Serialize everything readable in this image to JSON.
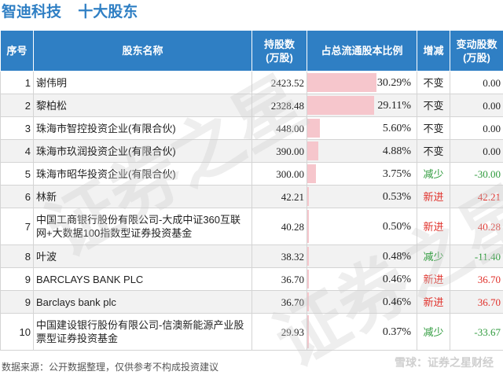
{
  "header": {
    "company": "智迪科技",
    "title": "十大股东"
  },
  "table": {
    "columns": [
      "序号",
      "股东名称",
      "持股数\n(万股)",
      "占总流通股本比例",
      "增减",
      "变动股数\n(万股)"
    ],
    "rows": [
      {
        "idx": "1",
        "name": "谢伟明",
        "shares": "2423.52",
        "ratio": "30.29%",
        "ratio_value": 30.29,
        "change": "不变",
        "change_type": "flat",
        "delta": "0.00"
      },
      {
        "idx": "2",
        "name": "黎柏松",
        "shares": "2328.48",
        "ratio": "29.11%",
        "ratio_value": 29.11,
        "change": "不变",
        "change_type": "flat",
        "delta": "0.00"
      },
      {
        "idx": "3",
        "name": "珠海市智控投资企业(有限合伙)",
        "shares": "448.00",
        "ratio": "5.60%",
        "ratio_value": 5.6,
        "change": "不变",
        "change_type": "flat",
        "delta": "0.00"
      },
      {
        "idx": "4",
        "name": "珠海市玖润投资企业(有限合伙)",
        "shares": "390.00",
        "ratio": "4.88%",
        "ratio_value": 4.88,
        "change": "不变",
        "change_type": "flat",
        "delta": "0.00"
      },
      {
        "idx": "5",
        "name": "珠海市昭华投资企业(有限合伙)",
        "shares": "300.00",
        "ratio": "3.75%",
        "ratio_value": 3.75,
        "change": "减少",
        "change_type": "down",
        "delta": "-30.00"
      },
      {
        "idx": "6",
        "name": "林新",
        "shares": "42.21",
        "ratio": "0.53%",
        "ratio_value": 0.53,
        "change": "新进",
        "change_type": "up",
        "delta": "42.21"
      },
      {
        "idx": "7",
        "name": "中国工商银行股份有限公司-大成中证360互联网+大数据100指数型证券投资基金",
        "shares": "40.28",
        "ratio": "0.50%",
        "ratio_value": 0.5,
        "change": "新进",
        "change_type": "up",
        "delta": "40.28"
      },
      {
        "idx": "8",
        "name": "叶波",
        "shares": "38.32",
        "ratio": "0.48%",
        "ratio_value": 0.48,
        "change": "减少",
        "change_type": "down",
        "delta": "-11.40"
      },
      {
        "idx": "9",
        "name": "BARCLAYS BANK PLC",
        "shares": "36.70",
        "ratio": "0.46%",
        "ratio_value": 0.46,
        "change": "新进",
        "change_type": "up",
        "delta": "36.70"
      },
      {
        "idx": "9",
        "name": "Barclays bank plc",
        "shares": "36.70",
        "ratio": "0.46%",
        "ratio_value": 0.46,
        "change": "新进",
        "change_type": "up",
        "delta": "36.70"
      },
      {
        "idx": "10",
        "name": "中国建设银行股份有限公司-信澳新能源产业股票型证券投资基金",
        "shares": "29.93",
        "ratio": "0.37%",
        "ratio_value": 0.37,
        "change": "减少",
        "change_type": "down",
        "delta": "-33.67"
      }
    ]
  },
  "footer": {
    "source": "数据来源：公开数据整理，仅供参考不构成投资建议",
    "brand": "雪球：证券之星财经"
  },
  "watermark": {
    "text": "证券之星"
  },
  "colors": {
    "header_bg": "#2f7fc4",
    "title": "#2f7fc4",
    "bar": "#f6c6cc",
    "up": "#e0302a",
    "down": "#2e9a3c"
  }
}
